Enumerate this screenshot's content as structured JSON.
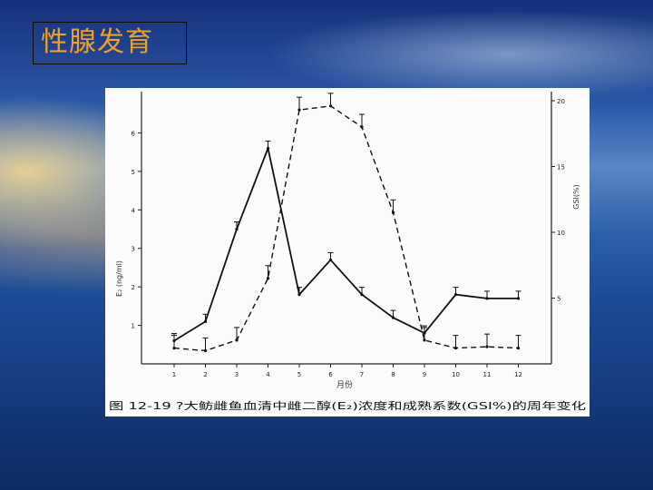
{
  "slide": {
    "title": "性腺发育"
  },
  "chart_data": {
    "type": "line",
    "x": [
      1,
      2,
      3,
      4,
      5,
      6,
      7,
      8,
      9,
      10,
      11,
      12
    ],
    "xlabel": "月份",
    "y_left_label": "E₂ (ng/ml)",
    "y_right_label": "GSI(%)",
    "x_ticks": [
      "1",
      "2",
      "3",
      "4",
      "5",
      "6",
      "7",
      "8",
      "9",
      "10",
      "11",
      "12"
    ],
    "y_left_ticks": [
      "1",
      "2",
      "3",
      "4",
      "5",
      "6"
    ],
    "y_right_ticks": [
      "5",
      "10",
      "15",
      "20"
    ],
    "ylim_left": [
      0,
      6
    ],
    "ylim_right": [
      0,
      20
    ],
    "series": [
      {
        "values": [
          0.6,
          1.1,
          3.5,
          5.6,
          1.8,
          2.7,
          1.8,
          1.2,
          0.8,
          1.8,
          1.7,
          1.7
        ],
        "style": "solid",
        "axis": "left"
      },
      {
        "values": [
          1.2,
          1.0,
          1.8,
          6.5,
          19.3,
          19.6,
          18.0,
          11.5,
          1.8,
          1.2,
          1.3,
          1.2
        ],
        "style": "dashed",
        "axis": "right"
      }
    ],
    "caption": "图 12-19  ?大鲂雌鱼血清中雌二醇(E₂)浓度和成熟系数(GSI%)的周年变化"
  }
}
